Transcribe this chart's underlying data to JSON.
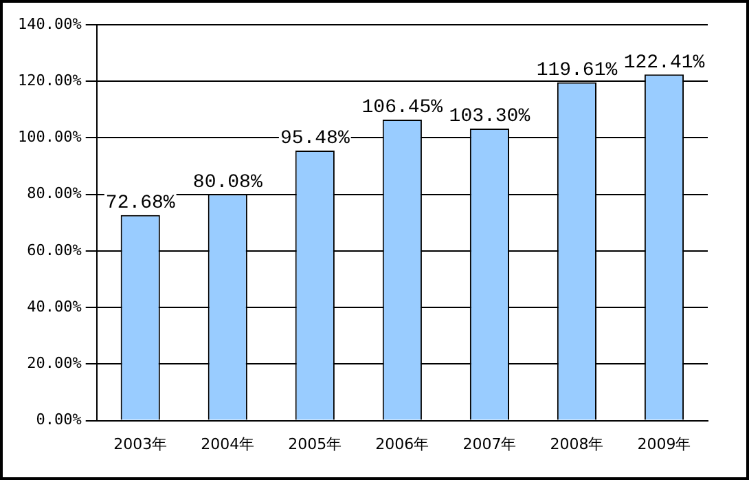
{
  "chart_data": {
    "type": "bar",
    "categories": [
      "2003年",
      "2004年",
      "2005年",
      "2006年",
      "2007年",
      "2008年",
      "2009年"
    ],
    "values": [
      72.68,
      80.08,
      95.48,
      106.45,
      103.3,
      119.61,
      122.41
    ],
    "value_labels": [
      "72.68%",
      "80.08%",
      "95.48%",
      "106.45%",
      "103.30%",
      "119.61%",
      "122.41%"
    ],
    "color": "#99ccff",
    "ylim": [
      0,
      140
    ],
    "yticks": [
      {
        "value": 0,
        "label": "0.00%"
      },
      {
        "value": 20,
        "label": "20.00%"
      },
      {
        "value": 40,
        "label": "40.00%"
      },
      {
        "value": 60,
        "label": "60.00%"
      },
      {
        "value": 80,
        "label": "80.00%"
      },
      {
        "value": 100,
        "label": "100.00%"
      },
      {
        "value": 120,
        "label": "120.00%"
      },
      {
        "value": 140,
        "label": "140.00%"
      }
    ],
    "grid": "y",
    "legend": false
  }
}
